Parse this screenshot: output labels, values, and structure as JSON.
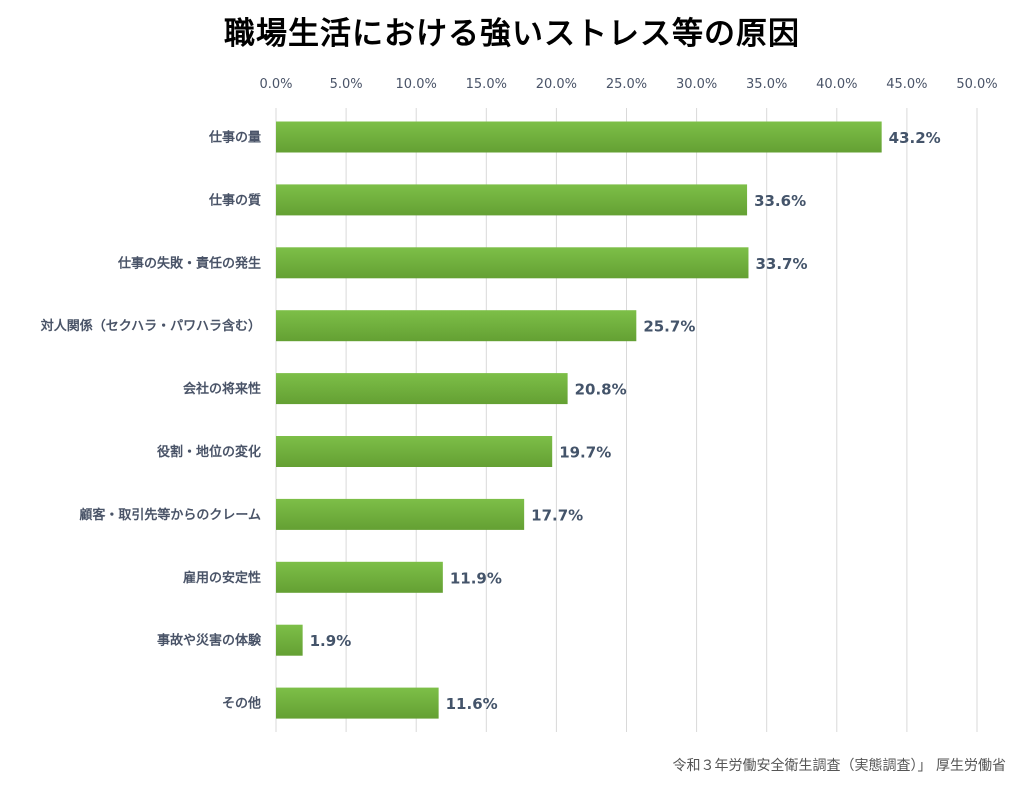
{
  "title": "職場生活における強いストレス等の原因",
  "source": "令和３年労働安全衛生調査（実態調査）」 厚生労働省",
  "colors": {
    "bar": "#6aa53a",
    "bar_light": "#7bbd45",
    "grid": "#d9d9d9",
    "text": "#4a5468"
  },
  "chart_data": {
    "type": "bar",
    "orientation": "horizontal",
    "title": "職場生活における強いストレス等の原因",
    "xlim": [
      0,
      50
    ],
    "xticks": [
      "0.0%",
      "5.0%",
      "10.0%",
      "15.0%",
      "20.0%",
      "25.0%",
      "30.0%",
      "35.0%",
      "40.0%",
      "45.0%",
      "50.0%"
    ],
    "categories": [
      "仕事の量",
      "仕事の質",
      "仕事の失敗・責任の発生",
      "対人関係（セクハラ・パワハラ含む）",
      "会社の将来性",
      "役割・地位の変化",
      "顧客・取引先等からのクレーム",
      "雇用の安定性",
      "事故や災害の体験",
      "その他"
    ],
    "values": [
      43.2,
      33.6,
      33.7,
      25.7,
      20.8,
      19.7,
      17.7,
      11.9,
      1.9,
      11.6
    ],
    "data_labels": [
      "43.2%",
      "33.6%",
      "33.7%",
      "25.7%",
      "20.8%",
      "19.7%",
      "17.7%",
      "11.9%",
      "1.9%",
      "11.6%"
    ],
    "grid": true,
    "axis_position": "top"
  }
}
